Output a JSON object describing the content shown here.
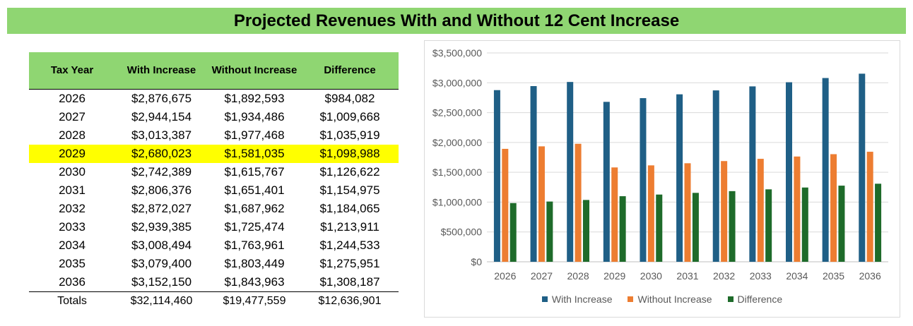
{
  "title": "Projected Revenues With and Without 12 Cent Increase",
  "table": {
    "headers": [
      "Tax Year",
      "With Increase",
      "Without Increase",
      "Difference"
    ],
    "rows": [
      [
        "2026",
        "$2,876,675",
        "$1,892,593",
        "$984,082"
      ],
      [
        "2027",
        "$2,944,154",
        "$1,934,486",
        "$1,009,668"
      ],
      [
        "2028",
        "$3,013,387",
        "$1,977,468",
        "$1,035,919"
      ],
      [
        "2029",
        "$2,680,023",
        "$1,581,035",
        "$1,098,988"
      ],
      [
        "2030",
        "$2,742,389",
        "$1,615,767",
        "$1,126,622"
      ],
      [
        "2031",
        "$2,806,376",
        "$1,651,401",
        "$1,154,975"
      ],
      [
        "2032",
        "$2,872,027",
        "$1,687,962",
        "$1,184,065"
      ],
      [
        "2033",
        "$2,939,385",
        "$1,725,474",
        "$1,213,911"
      ],
      [
        "2034",
        "$3,008,494",
        "$1,763,961",
        "$1,244,533"
      ],
      [
        "2035",
        "$3,079,400",
        "$1,803,449",
        "$1,275,951"
      ],
      [
        "2036",
        "$3,152,150",
        "$1,843,963",
        "$1,308,187"
      ]
    ],
    "highlighted_row": "2029",
    "highlight_color": "#ffff00",
    "header_color": "#8fd672",
    "totals": [
      "Totals",
      "$32,114,460",
      "$19,477,559",
      "$12,636,901"
    ]
  },
  "chart_data": {
    "type": "bar",
    "categories": [
      "2026",
      "2027",
      "2028",
      "2029",
      "2030",
      "2031",
      "2032",
      "2033",
      "2034",
      "2035",
      "2036"
    ],
    "series": [
      {
        "name": "With Increase",
        "color": "#1f5f86",
        "values": [
          2876675,
          2944154,
          3013387,
          2680023,
          2742389,
          2806376,
          2872027,
          2939385,
          3008494,
          3079400,
          3152150
        ]
      },
      {
        "name": "Without Increase",
        "color": "#ed7d31",
        "values": [
          1892593,
          1934486,
          1977468,
          1581035,
          1615767,
          1651401,
          1687962,
          1725474,
          1763961,
          1803449,
          1843963
        ]
      },
      {
        "name": "Difference",
        "color": "#1e6b2a",
        "values": [
          984082,
          1009668,
          1035919,
          1098988,
          1126622,
          1154975,
          1184065,
          1213911,
          1244533,
          1275951,
          1308187
        ]
      }
    ],
    "y_ticks": [
      "$0",
      "$500,000",
      "$1,000,000",
      "$1,500,000",
      "$2,000,000",
      "$2,500,000",
      "$3,000,000",
      "$3,500,000"
    ],
    "ylim": [
      0,
      3500000
    ],
    "grid": true,
    "legend_position": "bottom"
  }
}
